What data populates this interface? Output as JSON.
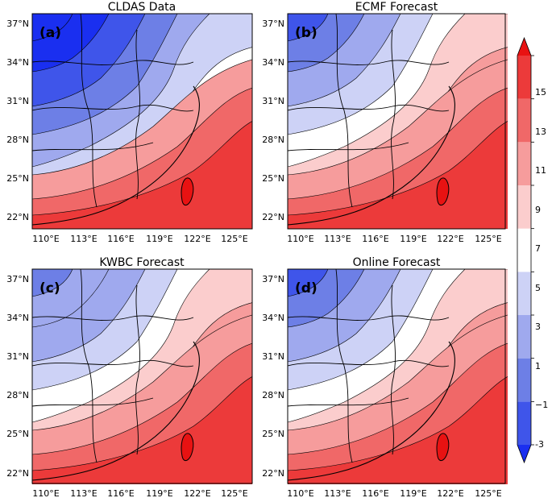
{
  "figure": {
    "levels": [
      -3,
      -1,
      1,
      3,
      5,
      7,
      9,
      11,
      13,
      15
    ],
    "level_colors": [
      "#1a2ff0",
      "#3f55ea",
      "#6d7fe6",
      "#9fa9ee",
      "#cdd2f6",
      "#ffffff",
      "#fbcdcd",
      "#f69c9c",
      "#f06868",
      "#ec3a3a",
      "#e81212"
    ],
    "colorbar_labels": [
      "-3",
      "−1",
      "1",
      "3",
      "5",
      "7",
      "9",
      "11",
      "13",
      "15"
    ],
    "x_tick_labels": [
      "110°E",
      "113°E",
      "116°E",
      "119°E",
      "122°E",
      "125°E"
    ],
    "y_tick_labels": [
      "37°N",
      "34°N",
      "31°N",
      "28°N",
      "25°N",
      "22°N"
    ],
    "panels": [
      {
        "title": "CLDAS Data",
        "label": "(a)",
        "base_level": 0
      },
      {
        "title": "ECMF Forecast",
        "label": "(b)",
        "base_level": 2
      },
      {
        "title": "KWBC Forecast",
        "label": "(c)",
        "base_level": 3
      },
      {
        "title": "Online Forecast",
        "label": "(d)",
        "base_level": 2
      }
    ]
  }
}
